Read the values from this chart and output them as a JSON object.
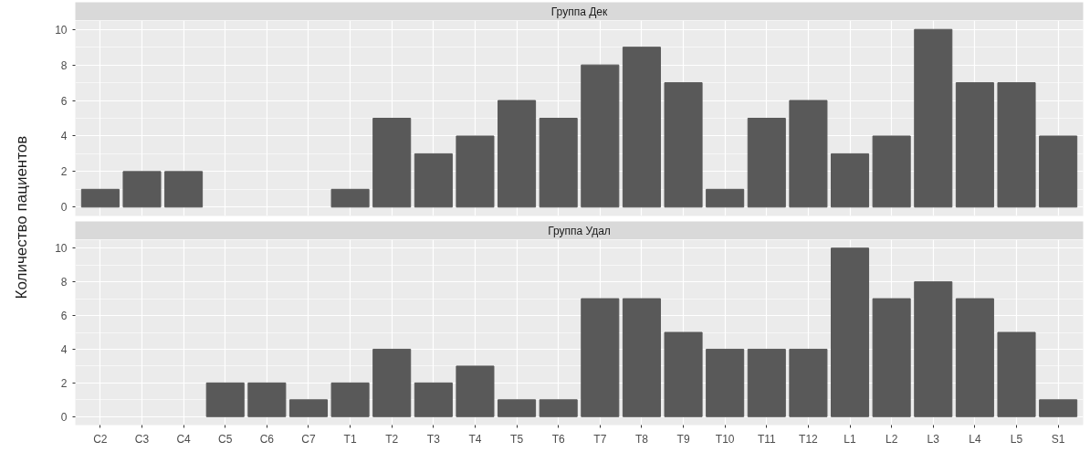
{
  "chart_data": [
    {
      "type": "bar",
      "title": "Группа Дек",
      "ylabel": "Количество пациентов",
      "categories": [
        null,
        null,
        null,
        null,
        null,
        null,
        null,
        null,
        null,
        null,
        null,
        null,
        null,
        null,
        null,
        null,
        null,
        null,
        null,
        null,
        null,
        null,
        null,
        null
      ],
      "values": [
        1,
        2,
        2,
        null,
        null,
        null,
        1,
        5,
        3,
        4,
        6,
        5,
        8,
        9,
        7,
        1,
        5,
        6,
        3,
        4,
        10,
        7,
        7,
        4
      ],
      "color": "#595959",
      "ylim": [
        -0.5,
        10.5
      ],
      "yticks": [
        0,
        2,
        4,
        6,
        8,
        10
      ],
      "grid": true,
      "tick_labels": "y"
    },
    {
      "type": "bar",
      "title": "Группа Удал",
      "categories": [
        "C2",
        "C3",
        "C4",
        "C5",
        "C6",
        "C7",
        "T1",
        "T2",
        "T3",
        "T4",
        "T5",
        "T6",
        "T7",
        "T8",
        "T9",
        "T10",
        "T11",
        "T12",
        "L1",
        "L2",
        "L3",
        "L4",
        "L5",
        "S1"
      ],
      "values": [
        null,
        null,
        null,
        2,
        2,
        1,
        2,
        4,
        2,
        3,
        1,
        1,
        7,
        7,
        5,
        4,
        4,
        4,
        10,
        7,
        8,
        7,
        5,
        1
      ],
      "color": "#595959",
      "ylim": [
        -0.5,
        10.5
      ],
      "yticks": [
        0,
        2,
        4,
        6,
        8,
        10
      ],
      "grid": true
    }
  ]
}
